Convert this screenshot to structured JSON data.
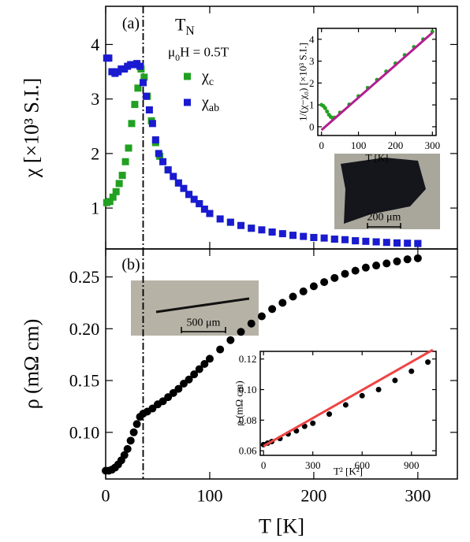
{
  "chart_data": [
    {
      "type": "scatter",
      "panel_label": "(a)",
      "transition_label": "TN",
      "field_label": "μ0H = 0.5T",
      "ylabel": "χ  [×10³ S.I.]",
      "xlim": [
        0,
        338
      ],
      "ylim": [
        0.25,
        4.7
      ],
      "xticks": [
        0,
        100,
        200,
        300
      ],
      "xtick_labels": false,
      "yticks": [
        1,
        2,
        3,
        4
      ],
      "vline": 36,
      "legend": true,
      "series": [
        {
          "name": "χc",
          "color": "#22a022",
          "mode": "markers",
          "marker": "square",
          "x": [
            1,
            4,
            7,
            10,
            13,
            16,
            19,
            22,
            25,
            28,
            31,
            34,
            37,
            40,
            44,
            48,
            52,
            60,
            70,
            80,
            90,
            100,
            120,
            140,
            160,
            180,
            200,
            220,
            240,
            260,
            280,
            300
          ],
          "values": [
            1.1,
            1.12,
            1.2,
            1.3,
            1.45,
            1.6,
            1.85,
            2.1,
            2.55,
            2.9,
            3.2,
            3.55,
            3.4,
            3.05,
            2.6,
            2.2,
            1.95,
            1.7,
            1.46,
            1.25,
            1.08,
            0.9,
            0.74,
            0.63,
            0.56,
            0.5,
            0.46,
            0.43,
            0.4,
            0.38,
            0.36,
            0.35
          ]
        },
        {
          "name": "χab",
          "color": "#1a1ad0",
          "mode": "markers",
          "marker": "square",
          "x": [
            1,
            3,
            6,
            9,
            12,
            15,
            18,
            21,
            24,
            27,
            30,
            33,
            36,
            39,
            42,
            45,
            48,
            51,
            55,
            60,
            65,
            70,
            75,
            80,
            85,
            90,
            95,
            100,
            110,
            120,
            130,
            140,
            150,
            160,
            170,
            180,
            190,
            200,
            210,
            220,
            230,
            240,
            250,
            260,
            270,
            280,
            290,
            300
          ],
          "values": [
            3.75,
            3.75,
            3.5,
            3.47,
            3.5,
            3.55,
            3.55,
            3.6,
            3.63,
            3.63,
            3.65,
            3.6,
            3.3,
            3.05,
            2.8,
            2.55,
            2.25,
            2.0,
            1.85,
            1.7,
            1.58,
            1.46,
            1.36,
            1.25,
            1.16,
            1.08,
            0.98,
            0.9,
            0.8,
            0.74,
            0.68,
            0.63,
            0.6,
            0.56,
            0.53,
            0.5,
            0.48,
            0.46,
            0.45,
            0.43,
            0.42,
            0.4,
            0.39,
            0.38,
            0.37,
            0.36,
            0.355,
            0.35
          ]
        }
      ]
    },
    {
      "type": "scatter",
      "xlabel": "T [K]",
      "ylabel": "1/(χ−χ₀) [×10³ S.I.]",
      "xlim": [
        -10,
        310
      ],
      "ylim": [
        -0.4,
        4.5
      ],
      "xticks": [
        0,
        100,
        200,
        300
      ],
      "yticks": [
        0,
        1,
        2,
        3,
        4
      ],
      "series": [
        {
          "color": "#22a022",
          "mode": "markers",
          "marker": "circle",
          "x": [
            0,
            5,
            10,
            15,
            20,
            25,
            30,
            35,
            50,
            75,
            100,
            125,
            150,
            175,
            200,
            225,
            250,
            275,
            300
          ],
          "values": [
            1.0,
            0.95,
            0.85,
            0.7,
            0.55,
            0.45,
            0.4,
            0.42,
            0.65,
            1.02,
            1.4,
            1.78,
            2.15,
            2.53,
            2.9,
            3.28,
            3.65,
            4.0,
            4.35
          ]
        },
        {
          "color": "#b0208f",
          "mode": "line",
          "x": [
            0,
            300
          ],
          "values": [
            -0.15,
            4.3
          ]
        }
      ]
    },
    {
      "type": "scatter",
      "panel_label": "(b)",
      "xlabel": "T [K]",
      "ylabel": "ρ (mΩ cm)",
      "xlim": [
        0,
        338
      ],
      "ylim": [
        0.055,
        0.277
      ],
      "xticks": [
        0,
        100,
        200,
        300
      ],
      "yticks": [
        {
          "value": 0.1,
          "label": "0.10"
        },
        0.15,
        {
          "value": 0.2,
          "label": "0.20"
        },
        0.25
      ],
      "vline": 36,
      "series": [
        {
          "color": "#000000",
          "mode": "markers",
          "marker": "circle",
          "x": [
            0,
            3,
            6,
            9,
            12,
            15,
            18,
            21,
            24,
            27,
            30,
            33,
            36,
            40,
            45,
            50,
            55,
            60,
            65,
            70,
            75,
            80,
            85,
            90,
            95,
            100,
            110,
            120,
            130,
            140,
            150,
            160,
            170,
            180,
            190,
            200,
            210,
            220,
            230,
            240,
            250,
            260,
            270,
            280,
            290,
            300
          ],
          "values": [
            0.063,
            0.063,
            0.064,
            0.066,
            0.069,
            0.073,
            0.078,
            0.084,
            0.092,
            0.1,
            0.108,
            0.115,
            0.118,
            0.12,
            0.123,
            0.127,
            0.13,
            0.134,
            0.138,
            0.142,
            0.147,
            0.151,
            0.156,
            0.161,
            0.166,
            0.171,
            0.18,
            0.189,
            0.197,
            0.205,
            0.212,
            0.219,
            0.225,
            0.231,
            0.236,
            0.241,
            0.245,
            0.249,
            0.253,
            0.256,
            0.259,
            0.261,
            0.263,
            0.265,
            0.267,
            0.268
          ]
        }
      ]
    },
    {
      "type": "scatter",
      "xlabel": "T² [K²]",
      "ylabel": "ρ (mΩ cm)",
      "xlim": [
        -20,
        1050
      ],
      "ylim": [
        0.057,
        0.125
      ],
      "xticks": [
        0,
        300,
        600,
        900
      ],
      "yticks": [
        0.06,
        0.08,
        {
          "value": 0.1,
          "label": "0.10"
        },
        0.12
      ],
      "series": [
        {
          "color": "#000000",
          "mode": "markers",
          "marker": "circle",
          "x": [
            0,
            25,
            50,
            100,
            150,
            200,
            250,
            300,
            400,
            500,
            600,
            700,
            800,
            900,
            1000
          ],
          "values": [
            0.064,
            0.065,
            0.066,
            0.068,
            0.071,
            0.073,
            0.076,
            0.078,
            0.084,
            0.09,
            0.096,
            0.1,
            0.106,
            0.112,
            0.118
          ]
        },
        {
          "color": "#ee4444",
          "mode": "line",
          "x": [
            0,
            1030
          ],
          "values": [
            0.063,
            0.126
          ]
        }
      ]
    }
  ],
  "images": [
    {
      "scale_label": "200 μm"
    },
    {
      "scale_label": "500 μm"
    }
  ]
}
